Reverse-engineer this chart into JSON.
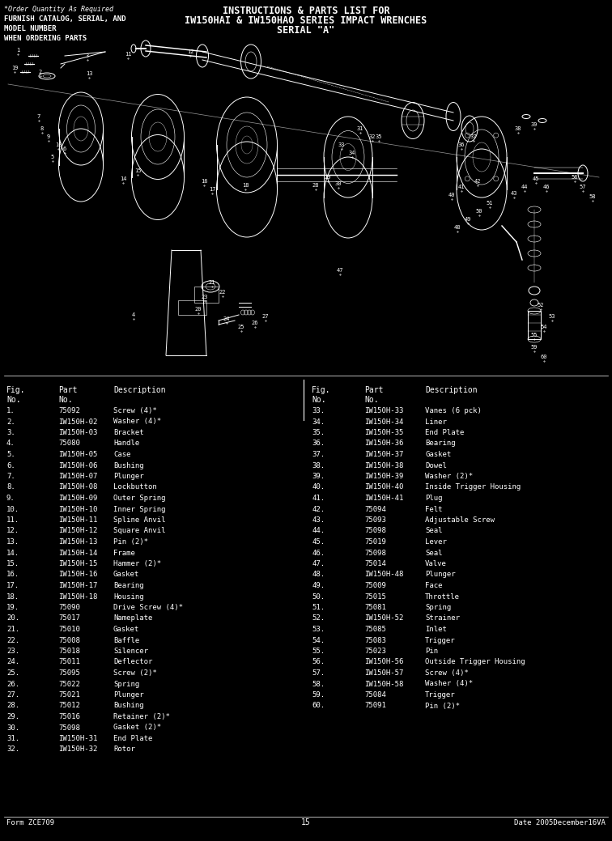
{
  "title_line1": "INSTRUCTIONS & PARTS LIST FOR",
  "title_line2": "IW150HAI & IW150HAO SERIES IMPACT WRENCHES",
  "title_line3": "SERIAL \"A\"",
  "note_line1": "*Order Quantity As Required",
  "note_line2": "FURNISH CATALOG, SERIAL, AND",
  "note_line3": "MODEL NUMBER",
  "note_line4": "WHEN ORDERING PARTS",
  "parts_left": [
    [
      "1.",
      "75092",
      "Screw (4)*"
    ],
    [
      "2.",
      "IW150H-02",
      "Washer (4)*"
    ],
    [
      "3.",
      "IW150H-03",
      "Bracket"
    ],
    [
      "4.",
      "75080",
      "Handle"
    ],
    [
      "5.",
      "IW150H-05",
      "Case"
    ],
    [
      "6.",
      "IW150H-06",
      "Bushing"
    ],
    [
      "7.",
      "IW150H-07",
      "Plunger"
    ],
    [
      "8.",
      "IW150H-08",
      "Lockbutton"
    ],
    [
      "9.",
      "IW150H-09",
      "Outer Spring"
    ],
    [
      "10.",
      "IW150H-10",
      "Inner Spring"
    ],
    [
      "11.",
      "IW150H-11",
      "Spline Anvil"
    ],
    [
      "12.",
      "IW150H-12",
      "Square Anvil"
    ],
    [
      "13.",
      "IW150H-13",
      "Pin (2)*"
    ],
    [
      "14.",
      "IW150H-14",
      "Frame"
    ],
    [
      "15.",
      "IW150H-15",
      "Hammer (2)*"
    ],
    [
      "16.",
      "IW150H-16",
      "Gasket"
    ],
    [
      "17.",
      "IW150H-17",
      "Bearing"
    ],
    [
      "18.",
      "IW150H-18",
      "Housing"
    ],
    [
      "19.",
      "75090",
      "Drive Screw (4)*"
    ],
    [
      "20.",
      "75017",
      "Nameplate"
    ],
    [
      "21.",
      "75010",
      "Gasket"
    ],
    [
      "22.",
      "75008",
      "Baffle"
    ],
    [
      "23.",
      "75018",
      "Silencer"
    ],
    [
      "24.",
      "75011",
      "Deflector"
    ],
    [
      "25.",
      "75095",
      "Screw (2)*"
    ],
    [
      "26.",
      "75022",
      "Spring"
    ],
    [
      "27.",
      "75021",
      "Plunger"
    ],
    [
      "28.",
      "75012",
      "Bushing"
    ],
    [
      "29.",
      "75016",
      "Retainer (2)*"
    ],
    [
      "30.",
      "75098",
      "Gasket (2)*"
    ],
    [
      "31.",
      "IW150H-31",
      "End Plate"
    ],
    [
      "32.",
      "IW150H-32",
      "Rotor"
    ]
  ],
  "parts_right": [
    [
      "33.",
      "IW150H-33",
      "Vanes (6 pck)"
    ],
    [
      "34.",
      "IW150H-34",
      "Liner"
    ],
    [
      "35.",
      "IW150H-35",
      "End Plate"
    ],
    [
      "36.",
      "IW150H-36",
      "Bearing"
    ],
    [
      "37.",
      "IW150H-37",
      "Gasket"
    ],
    [
      "38.",
      "IW150H-38",
      "Dowel"
    ],
    [
      "39.",
      "IW150H-39",
      "Washer (2)*"
    ],
    [
      "40.",
      "IW150H-40",
      "Inside Trigger Housing"
    ],
    [
      "41.",
      "IW150H-41",
      "Plug"
    ],
    [
      "42.",
      "75094",
      "Felt"
    ],
    [
      "43.",
      "75093",
      "Adjustable Screw"
    ],
    [
      "44.",
      "75098",
      "Seal"
    ],
    [
      "45.",
      "75019",
      "Lever"
    ],
    [
      "46.",
      "75098",
      "Seal"
    ],
    [
      "47.",
      "75014",
      "Valve"
    ],
    [
      "48.",
      "IW150H-48",
      "Plunger"
    ],
    [
      "49.",
      "75009",
      "Face"
    ],
    [
      "50.",
      "75015",
      "Throttle"
    ],
    [
      "51.",
      "75081",
      "Spring"
    ],
    [
      "52.",
      "IW150H-52",
      "Strainer"
    ],
    [
      "53.",
      "75085",
      "Inlet"
    ],
    [
      "54.",
      "75083",
      "Trigger"
    ],
    [
      "55.",
      "75023",
      "Pin"
    ],
    [
      "56.",
      "IW150H-56",
      "Outside Trigger Housing"
    ],
    [
      "57.",
      "IW150H-57",
      "Screw (4)*"
    ],
    [
      "58.",
      "IW150H-58",
      "Washer (4)*"
    ],
    [
      "59.",
      "75084",
      "Trigger"
    ],
    [
      "60.",
      "75091",
      "Pin (2)*"
    ]
  ],
  "form_text": "Form ZCE709",
  "page_number": "15",
  "date_text": "Date 2005December16VA",
  "bg_color": "#000000",
  "text_color": "#ffffff"
}
